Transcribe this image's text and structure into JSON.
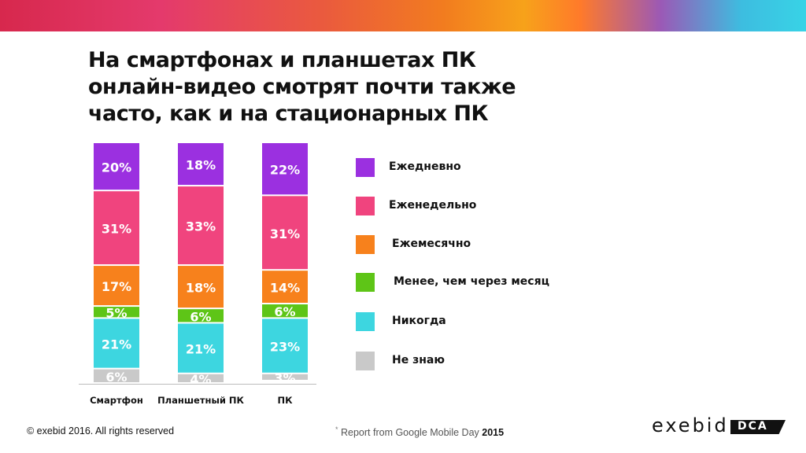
{
  "title_lines": [
    "На смартфонах и планшетах ПК",
    "онлайн-видео смотрят почти также",
    "часто, как и на стационарных ПК"
  ],
  "chart_data": {
    "type": "bar",
    "stacked": true,
    "categories": [
      "Смартфон",
      "Планшетный ПК",
      "ПК"
    ],
    "series": [
      {
        "name": "Ежедневно",
        "color": "#9b30e0",
        "values": [
          20,
          18,
          22
        ],
        "labels": [
          "20%",
          "18%",
          "22%"
        ]
      },
      {
        "name": "Еженедельно",
        "color": "#f0447e",
        "values": [
          31,
          33,
          31
        ],
        "labels": [
          "31%",
          "33%",
          "31%"
        ]
      },
      {
        "name": "Ежемесячно",
        "color": "#f7811c",
        "values": [
          17,
          18,
          14
        ],
        "labels": [
          "17%",
          "18%",
          "14%"
        ]
      },
      {
        "name": "Менее, чем через месяц",
        "color": "#5ec517",
        "values": [
          5,
          6,
          6
        ],
        "labels": [
          "5%",
          "6%",
          "6%"
        ]
      },
      {
        "name": "Никогда",
        "color": "#3dd6e0",
        "values": [
          21,
          21,
          23
        ],
        "labels": [
          "21%",
          "21%",
          "23%"
        ]
      },
      {
        "name": "Не знаю",
        "color": "#c9c9c9",
        "values": [
          6,
          4,
          3
        ],
        "labels": [
          "6%",
          "4%",
          "3%"
        ]
      }
    ],
    "legend_position": "right",
    "grid": false
  },
  "footer": {
    "copyright": "© exebid 2016. All rights reserved",
    "source_star": "*",
    "source": "Report from Google Mobile Day",
    "source_year": "2015"
  },
  "logo": {
    "text": "exebid",
    "box_text": "DCA"
  }
}
